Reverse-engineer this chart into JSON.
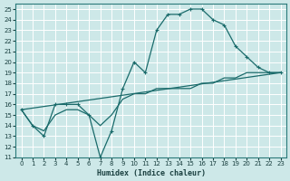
{
  "xlabel": "Humidex (Indice chaleur)",
  "background_color": "#cde8e8",
  "grid_color": "#b8d8d8",
  "line_color": "#1a6b6b",
  "xlim": [
    -0.5,
    23.5
  ],
  "ylim": [
    11,
    25.5
  ],
  "xticks": [
    0,
    1,
    2,
    3,
    4,
    5,
    6,
    7,
    8,
    9,
    10,
    11,
    12,
    13,
    14,
    15,
    16,
    17,
    18,
    19,
    20,
    21,
    22,
    23
  ],
  "yticks": [
    11,
    12,
    13,
    14,
    15,
    16,
    17,
    18,
    19,
    20,
    21,
    22,
    23,
    24,
    25
  ],
  "series1_x": [
    0,
    1,
    2,
    3,
    4,
    5,
    6,
    7,
    8,
    9,
    10,
    11,
    12,
    13,
    14,
    15,
    16,
    17,
    18,
    19,
    20,
    21,
    22,
    23
  ],
  "series1_y": [
    15.5,
    14.0,
    13.0,
    16.0,
    16.0,
    16.0,
    15.0,
    11.0,
    13.5,
    17.5,
    20.0,
    19.0,
    23.0,
    24.5,
    24.5,
    25.0,
    25.0,
    24.0,
    23.5,
    21.5,
    20.5,
    19.5,
    19.0,
    19.0
  ],
  "series2_x": [
    0,
    1,
    2,
    3,
    4,
    5,
    6,
    7,
    8,
    9,
    10,
    11,
    12,
    13,
    14,
    15,
    16,
    17,
    18,
    19,
    20,
    21,
    22,
    23
  ],
  "series2_y": [
    15.5,
    14.0,
    13.5,
    15.0,
    15.5,
    15.5,
    15.0,
    14.0,
    15.0,
    16.5,
    17.0,
    17.0,
    17.5,
    17.5,
    17.5,
    17.5,
    18.0,
    18.0,
    18.5,
    18.5,
    19.0,
    19.0,
    19.0,
    19.0
  ],
  "series3_x": [
    0,
    23
  ],
  "series3_y": [
    15.5,
    19.0
  ]
}
